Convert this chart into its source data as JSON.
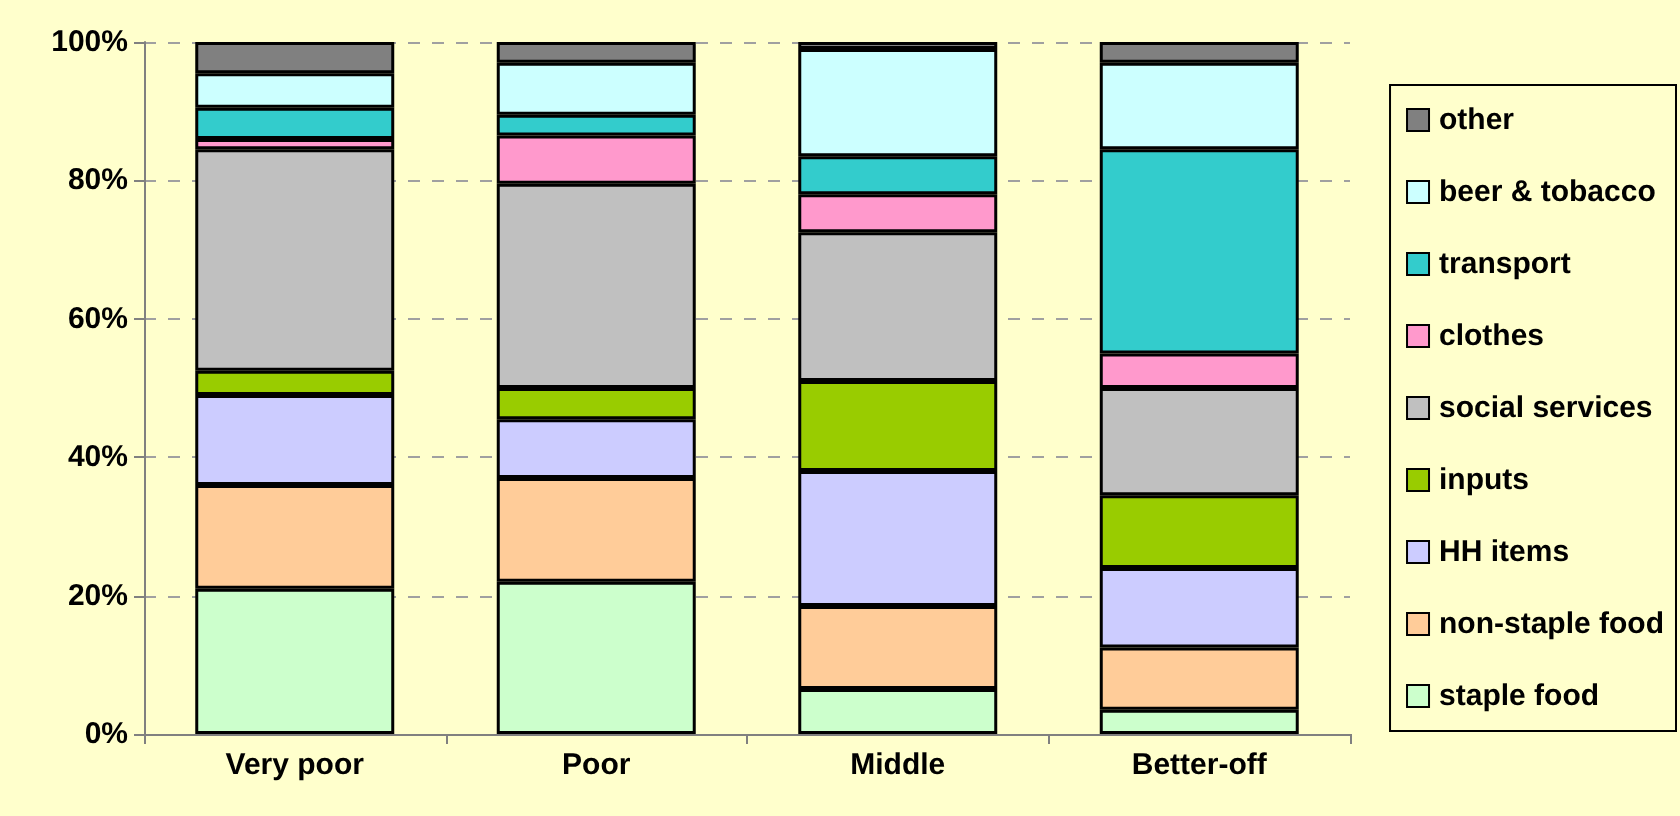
{
  "chart_data": {
    "type": "bar",
    "stacked": true,
    "categories": [
      "Very poor",
      "Poor",
      "Middle",
      "Better-off"
    ],
    "series": [
      {
        "name": "staple food",
        "color": "#ccffcc",
        "values": [
          21,
          22,
          6.5,
          3.5
        ]
      },
      {
        "name": "non-staple food",
        "color": "#ffcc99",
        "values": [
          15,
          15,
          12,
          9
        ]
      },
      {
        "name": "HH items",
        "color": "#ccccff",
        "values": [
          13,
          8.5,
          19.5,
          11.5
        ]
      },
      {
        "name": "inputs",
        "color": "#99cc00",
        "values": [
          3.5,
          4.5,
          13,
          10.5
        ]
      },
      {
        "name": "social services",
        "color": "#c0c0c0",
        "values": [
          32,
          29.5,
          21.5,
          15.5
        ]
      },
      {
        "name": "clothes",
        "color": "#ff99cc",
        "values": [
          1.5,
          7,
          5.5,
          5
        ]
      },
      {
        "name": "transport",
        "color": "#33cccc",
        "values": [
          4.5,
          3,
          5.5,
          29.5
        ]
      },
      {
        "name": "beer & tobacco",
        "color": "#ccffff",
        "values": [
          5,
          7.5,
          15.5,
          12.5
        ]
      },
      {
        "name": "other",
        "color": "#808080",
        "values": [
          4.5,
          3,
          1,
          3
        ]
      }
    ],
    "ylim": [
      0,
      100
    ],
    "yticks": [
      {
        "value": 0,
        "label": "0%"
      },
      {
        "value": 20,
        "label": "20%"
      },
      {
        "value": 40,
        "label": "40%"
      },
      {
        "value": 60,
        "label": "60%"
      },
      {
        "value": 80,
        "label": "80%"
      },
      {
        "value": 100,
        "label": "100%"
      }
    ],
    "grid": "y",
    "legend": "right"
  }
}
